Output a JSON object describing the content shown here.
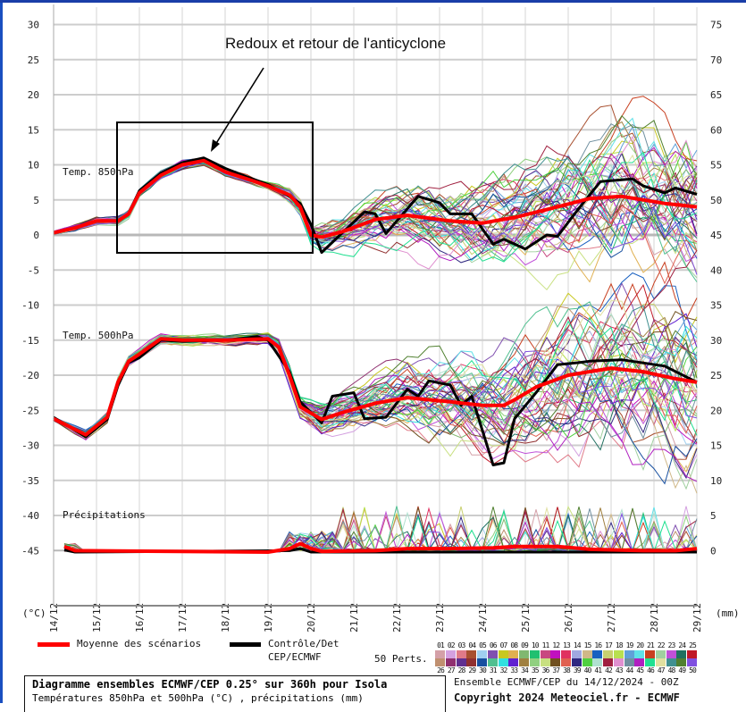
{
  "annotation": "Redoux et retour de l'anticyclone",
  "chart_data": {
    "type": "line",
    "grid": true,
    "left_axis": {
      "unit_label": "(°C)",
      "range": [
        -45,
        30
      ],
      "ticks": [
        30,
        25,
        20,
        15,
        10,
        5,
        0,
        -5,
        -10,
        -15,
        -20,
        -25,
        -30,
        -35,
        -40,
        -45
      ]
    },
    "right_axis": {
      "unit_label": "(mm)",
      "ticks": [
        75,
        70,
        65,
        60,
        55,
        50,
        45,
        40,
        35,
        30,
        25,
        20,
        15,
        10,
        5,
        0
      ]
    },
    "x_ticks": [
      "14/12",
      "15/12",
      "16/12",
      "17/12",
      "18/12",
      "19/12",
      "20/12",
      "21/12",
      "22/12",
      "23/12",
      "24/12",
      "25/12",
      "26/12",
      "27/12",
      "28/12",
      "29/12"
    ],
    "panels": [
      {
        "label": "Temp. 850hPa",
        "mean": [
          [
            "14/12 00",
            0.3
          ],
          [
            "14/12 12",
            1.0
          ],
          [
            "15/12 00",
            2.0
          ],
          [
            "15/12 12",
            2.0
          ],
          [
            "15/12 18",
            3.0
          ],
          [
            "16/12 00",
            6.0
          ],
          [
            "16/12 12",
            8.5
          ],
          [
            "17/12 00",
            10.0
          ],
          [
            "17/12 12",
            10.6
          ],
          [
            "18/12 00",
            9.0
          ],
          [
            "18/12 12",
            8.0
          ],
          [
            "19/12 00",
            7.0
          ],
          [
            "19/12 12",
            5.7
          ],
          [
            "19/12 18",
            4.0
          ],
          [
            "20/12 00",
            0.0
          ],
          [
            "20/12 06",
            -0.3
          ],
          [
            "20/12 18",
            0.5
          ],
          [
            "21/12 12",
            2.2
          ],
          [
            "22/12 06",
            2.8
          ],
          [
            "23/12 06",
            2.0
          ],
          [
            "24/12 00",
            1.7
          ],
          [
            "24/12 18",
            2.5
          ],
          [
            "25/12 18",
            4.0
          ],
          [
            "26/12 12",
            5.2
          ],
          [
            "27/12 06",
            5.5
          ],
          [
            "28/12 06",
            4.5
          ],
          [
            "29/12 00",
            4.0
          ]
        ],
        "control": [
          [
            "14/12 00",
            0.3
          ],
          [
            "14/12 12",
            1.0
          ],
          [
            "15/12 00",
            2.0
          ],
          [
            "15/12 12",
            2.0
          ],
          [
            "15/12 18",
            3.0
          ],
          [
            "16/12 00",
            6.3
          ],
          [
            "16/12 12",
            8.8
          ],
          [
            "17/12 00",
            10.3
          ],
          [
            "17/12 12",
            11.0
          ],
          [
            "18/12 00",
            9.5
          ],
          [
            "18/12 12",
            8.3
          ],
          [
            "19/12 00",
            7.2
          ],
          [
            "19/12 12",
            5.5
          ],
          [
            "19/12 18",
            4.5
          ],
          [
            "20/12 00",
            1.5
          ],
          [
            "20/12 06",
            -2.5
          ],
          [
            "21/12 06",
            3.3
          ],
          [
            "21/12 12",
            3.0
          ],
          [
            "21/12 18",
            0.2
          ],
          [
            "22/12 12",
            5.5
          ],
          [
            "23/12 00",
            4.6
          ],
          [
            "23/12 06",
            3.0
          ],
          [
            "23/12 18",
            3.0
          ],
          [
            "24/12 06",
            -1.3
          ],
          [
            "24/12 12",
            -0.6
          ],
          [
            "25/12 00",
            -2.0
          ],
          [
            "25/12 12",
            0.0
          ],
          [
            "25/12 18",
            -0.2
          ],
          [
            "26/12 06",
            3.8
          ],
          [
            "26/12 18",
            7.6
          ],
          [
            "27/12 12",
            8.0
          ],
          [
            "27/12 18",
            7.0
          ],
          [
            "28/12 06",
            6.0
          ],
          [
            "28/12 12",
            6.7
          ],
          [
            "29/12 00",
            5.8
          ]
        ]
      },
      {
        "label": "Temp. 500hPa",
        "mean": [
          [
            "14/12 00",
            -26.2
          ],
          [
            "14/12 18",
            -28.5
          ],
          [
            "15/12 06",
            -26.0
          ],
          [
            "15/12 12",
            -21.0
          ],
          [
            "15/12 18",
            -18.0
          ],
          [
            "16/12 00",
            -17.0
          ],
          [
            "16/12 12",
            -14.8
          ],
          [
            "17/12 00",
            -15.0
          ],
          [
            "18/12 00",
            -15.0
          ],
          [
            "19/12 00",
            -14.8
          ],
          [
            "19/12 06",
            -16.0
          ],
          [
            "19/12 12",
            -20.0
          ],
          [
            "19/12 18",
            -24.5
          ],
          [
            "20/12 06",
            -26.3
          ],
          [
            "20/12 18",
            -25.3
          ],
          [
            "21/12 12",
            -24.0
          ],
          [
            "22/12 06",
            -23.2
          ],
          [
            "23/12 06",
            -23.8
          ],
          [
            "24/12 00",
            -24.3
          ],
          [
            "24/12 12",
            -24.3
          ],
          [
            "24/12 18",
            -23.5
          ],
          [
            "25/12 06",
            -21.7
          ],
          [
            "26/12 00",
            -20.0
          ],
          [
            "27/12 00",
            -19.0
          ],
          [
            "27/12 18",
            -19.5
          ],
          [
            "28/12 12",
            -20.5
          ],
          [
            "29/12 00",
            -21.0
          ]
        ],
        "control": [
          [
            "14/12 00",
            -26.0
          ],
          [
            "14/12 18",
            -28.8
          ],
          [
            "15/12 06",
            -26.3
          ],
          [
            "15/12 12",
            -21.5
          ],
          [
            "15/12 18",
            -18.2
          ],
          [
            "16/12 00",
            -17.5
          ],
          [
            "16/12 12",
            -15.0
          ],
          [
            "17/12 00",
            -15.2
          ],
          [
            "18/12 00",
            -15.0
          ],
          [
            "18/12 18",
            -14.5
          ],
          [
            "19/12 00",
            -15.0
          ],
          [
            "19/12 12",
            -19.5
          ],
          [
            "19/12 18",
            -23.8
          ],
          [
            "20/12 06",
            -26.8
          ],
          [
            "20/12 12",
            -23.0
          ],
          [
            "21/12 00",
            -22.5
          ],
          [
            "21/12 06",
            -26.2
          ],
          [
            "21/12 18",
            -26.0
          ],
          [
            "22/12 06",
            -22.0
          ],
          [
            "22/12 12",
            -23.0
          ],
          [
            "22/12 18",
            -20.8
          ],
          [
            "23/12 06",
            -21.4
          ],
          [
            "23/12 12",
            -24.3
          ],
          [
            "23/12 18",
            -23.0
          ],
          [
            "24/12 06",
            -32.8
          ],
          [
            "24/12 12",
            -32.5
          ],
          [
            "24/12 18",
            -26.2
          ],
          [
            "25/12 06",
            -22.5
          ],
          [
            "25/12 18",
            -18.5
          ],
          [
            "26/12 06",
            -18.2
          ],
          [
            "26/12 12",
            -18.0
          ],
          [
            "27/12 06",
            -17.8
          ],
          [
            "28/12 06",
            -18.7
          ],
          [
            "29/12 00",
            -21.0
          ]
        ]
      },
      {
        "label": "Précipitations",
        "unit": "mm",
        "mean": [
          [
            "14/12 06",
            0.8
          ],
          [
            "14/12 12",
            0.2
          ],
          [
            "19/12 00",
            0.0
          ],
          [
            "19/12 12",
            0.5
          ],
          [
            "19/12 18",
            1.2
          ],
          [
            "20/12 00",
            0.5
          ],
          [
            "20/12 06",
            0.1
          ],
          [
            "21/12 12",
            0.2
          ],
          [
            "22/12 06",
            0.5
          ],
          [
            "23/12 06",
            0.5
          ],
          [
            "24/12 06",
            0.6
          ],
          [
            "24/12 18",
            0.8
          ],
          [
            "25/12 18",
            0.8
          ],
          [
            "26/12 12",
            0.4
          ],
          [
            "27/12 18",
            0.2
          ],
          [
            "28/12 12",
            0.2
          ],
          [
            "29/12 00",
            0.5
          ]
        ],
        "control": [
          [
            "14/12 06",
            0.3
          ],
          [
            "14/12 12",
            0.0
          ],
          [
            "19/12 12",
            0.2
          ],
          [
            "19/12 18",
            0.5
          ],
          [
            "20/12 00",
            0.0
          ],
          [
            "29/12 00",
            0.0
          ]
        ]
      }
    ],
    "series_colors": {
      "mean": "#ff0000",
      "control": "#000000"
    },
    "member_colors": [
      "#d4a0a8",
      "#d4a0e0",
      "#e07a88",
      "#a85030",
      "#a0d0f0",
      "#8050b0",
      "#c8c820",
      "#e0b050",
      "#80b870",
      "#20c070",
      "#c84880",
      "#c010c0",
      "#e03060",
      "#a0a8e0",
      "#d0b888",
      "#1860c0",
      "#c8d070",
      "#b8e050",
      "#60a0d8",
      "#60e0e8",
      "#c84020",
      "#a0d0a0",
      "#c050d8",
      "#207060",
      "#c01828",
      "#c09070",
      "#903070",
      "#603090",
      "#903030",
      "#1850a0",
      "#50c090",
      "#30e0e0",
      "#6020d0",
      "#a08040",
      "#90d080",
      "#c8e080",
      "#705020",
      "#e06050",
      "#302880",
      "#50d040",
      "#b0e0d0",
      "#a02040",
      "#e090d0",
      "#7090a0",
      "#b020c0",
      "#20e090",
      "#e0e0a0",
      "#409090",
      "#508030",
      "#8050e0"
    ],
    "member_ids": [
      "01",
      "02",
      "03",
      "04",
      "05",
      "06",
      "07",
      "08",
      "09",
      "10",
      "11",
      "12",
      "13",
      "14",
      "15",
      "16",
      "17",
      "18",
      "19",
      "20",
      "21",
      "22",
      "23",
      "24",
      "25",
      "26",
      "27",
      "28",
      "29",
      "30",
      "31",
      "32",
      "33",
      "34",
      "35",
      "36",
      "37",
      "38",
      "39",
      "40",
      "41",
      "42",
      "43",
      "44",
      "45",
      "46",
      "47",
      "48",
      "49",
      "50"
    ]
  },
  "legend": {
    "mean_label": "Moyenne des scénarios",
    "control_label_1": "Contrôle/Det",
    "control_label_2": "CEP/ECMWF",
    "perts_label": "50 Perts."
  },
  "footer": {
    "title": "Diagramme ensembles ECMWF/CEP 0.25° sur 360h pour Isola",
    "subtitle": "Températures 850hPa et 500hPa (°C) , précipitations (mm)",
    "run": "Ensemble ECMWF/CEP du 14/12/2024 - 00Z",
    "copyright": "Copyright 2024 Meteociel.fr - ECMWF"
  }
}
